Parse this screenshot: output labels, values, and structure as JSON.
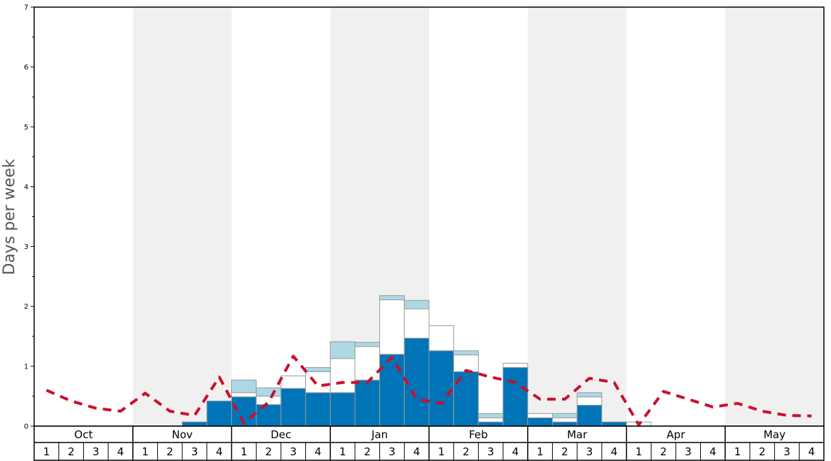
{
  "chart_data": {
    "type": "bar",
    "ylabel": "Days per week",
    "ylim": [
      0,
      7
    ],
    "yticks": [
      0,
      1,
      2,
      3,
      4,
      5,
      6,
      7
    ],
    "months": [
      "Oct",
      "Nov",
      "Dec",
      "Jan",
      "Feb",
      "Mar",
      "Apr",
      "May"
    ],
    "weeks": [
      "1",
      "2",
      "3",
      "4"
    ],
    "shaded_months": [
      "Nov",
      "Jan",
      "Mar",
      "May"
    ],
    "colors": {
      "dark": "#0174b7",
      "white": "#ffffff",
      "light": "#add8e6",
      "line": "#cc0e2e",
      "shade": "#f0f0f0",
      "bar_edge": "#999999"
    },
    "series": [
      {
        "values": [
          0,
          0,
          0,
          0,
          0,
          0,
          0.07,
          0.42,
          0.49,
          0.36,
          0.63,
          0.56,
          0.56,
          0.77,
          1.2,
          1.47,
          1.26,
          0.91,
          0.07,
          0.98,
          0.14,
          0.07,
          0.35,
          0.07,
          0,
          0,
          0,
          0,
          0,
          0,
          0,
          0
        ]
      },
      {
        "values": [
          0,
          0,
          0,
          0,
          0,
          0,
          0,
          0,
          0.07,
          0.14,
          0.21,
          0.35,
          0.57,
          0.56,
          0.91,
          0.49,
          0.42,
          0.28,
          0.07,
          0.07,
          0.07,
          0.07,
          0.14,
          0,
          0.07,
          0,
          0,
          0,
          0,
          0,
          0,
          0
        ]
      },
      {
        "values": [
          0,
          0,
          0,
          0,
          0,
          0,
          0,
          0,
          0.21,
          0.14,
          0,
          0.07,
          0.28,
          0.07,
          0.07,
          0.14,
          0,
          0.07,
          0.07,
          0,
          0,
          0.07,
          0.07,
          0,
          0,
          0,
          0,
          0,
          0,
          0,
          0,
          0
        ]
      },
      {
        "type": "line",
        "values": [
          0.6,
          0.42,
          0.3,
          0.25,
          0.55,
          0.25,
          0.18,
          0.82,
          0.05,
          0.4,
          1.17,
          0.67,
          0.73,
          0.73,
          1.15,
          0.45,
          0.38,
          0.93,
          0.82,
          0.73,
          0.45,
          0.45,
          0.8,
          0.73,
          0.02,
          0.58,
          0.45,
          0.32,
          0.38,
          0.25,
          0.18,
          0.17
        ]
      }
    ]
  }
}
